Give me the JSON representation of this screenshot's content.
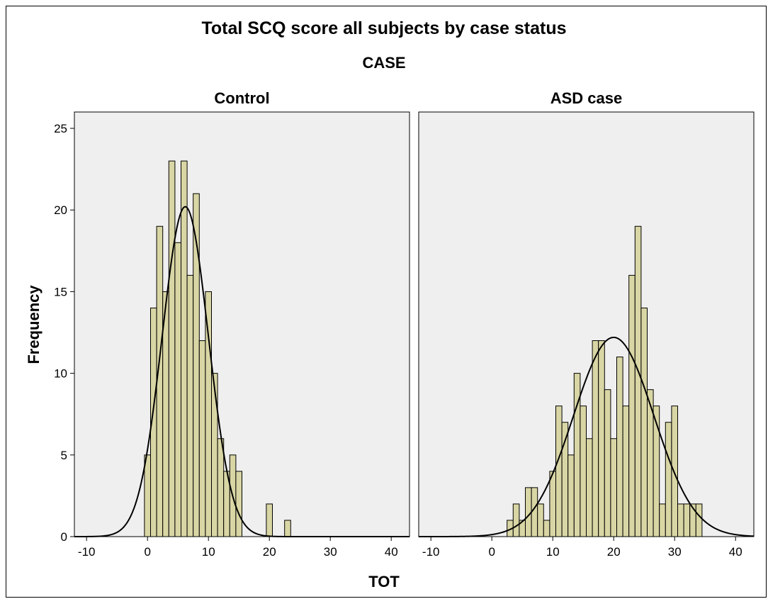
{
  "chart_data": {
    "type": "bar",
    "title": "Total SCQ score all subjects by case status",
    "facet_label": "CASE",
    "xlabel": "TOT",
    "ylabel": "Frequency",
    "xlim": [
      -12,
      43
    ],
    "ylim": [
      0,
      26
    ],
    "x_ticks": [
      -10,
      0,
      10,
      20,
      30,
      40
    ],
    "y_ticks": [
      0,
      5,
      10,
      15,
      20,
      25
    ],
    "bin_width": 1,
    "colors": {
      "bar_fill": "#d9d6a5",
      "bar_stroke": "#000000",
      "plot_bg": "#efefef",
      "curve": "#000000"
    },
    "panels": [
      {
        "name": "Control",
        "x": [
          0,
          1,
          2,
          3,
          4,
          5,
          6,
          7,
          8,
          9,
          10,
          11,
          12,
          13,
          14,
          15,
          20,
          23
        ],
        "values": [
          5,
          14,
          19,
          15,
          23,
          18,
          23,
          16,
          21,
          12,
          15,
          10,
          6,
          4,
          5,
          4,
          2,
          1
        ],
        "normal_curve": {
          "mean": 6.2,
          "sd": 3.8,
          "peak": 20.2
        }
      },
      {
        "name": "ASD case",
        "x": [
          3,
          4,
          5,
          6,
          7,
          8,
          9,
          10,
          11,
          12,
          13,
          14,
          15,
          16,
          17,
          18,
          19,
          20,
          21,
          22,
          23,
          24,
          25,
          26,
          27,
          28,
          29,
          30,
          31,
          32,
          33,
          34
        ],
        "values": [
          1,
          2,
          1,
          3,
          3,
          2,
          1,
          4,
          8,
          7,
          5,
          10,
          8,
          6,
          12,
          12,
          9,
          6,
          11,
          8,
          16,
          19,
          14,
          9,
          8,
          2,
          7,
          8,
          2,
          2,
          2,
          2
        ],
        "normal_curve": {
          "mean": 20.0,
          "sd": 6.6,
          "peak": 12.2
        }
      }
    ]
  }
}
